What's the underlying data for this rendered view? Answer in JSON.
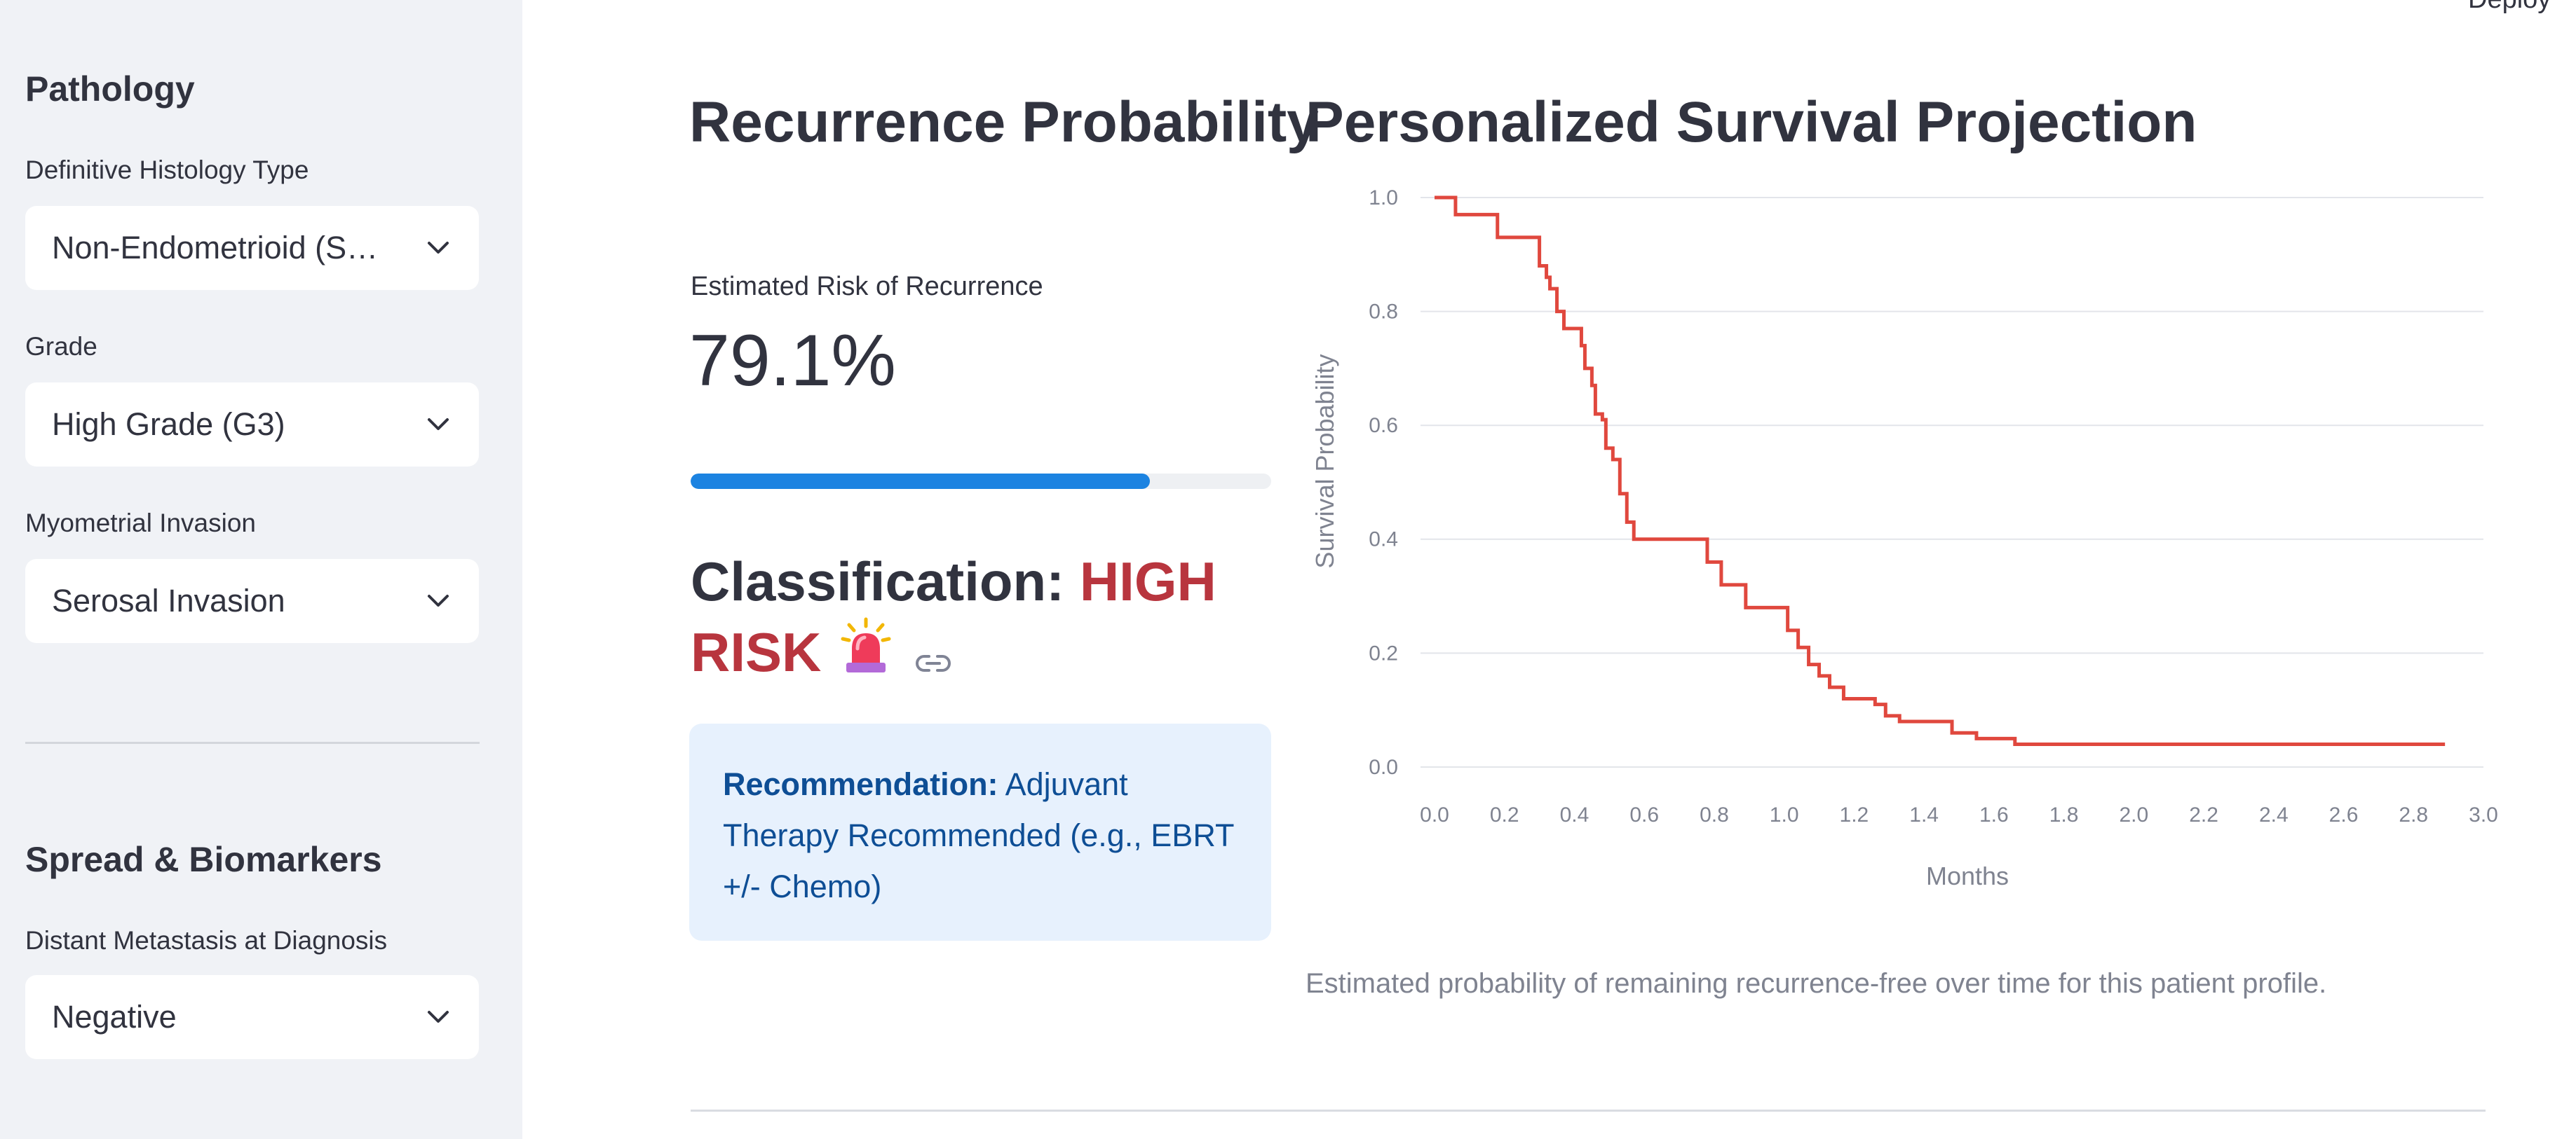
{
  "header": {
    "deploy_label": "Deploy"
  },
  "sidebar": {
    "pathology": {
      "title": "Pathology",
      "histology": {
        "label": "Definitive Histology Type",
        "value": "Non-Endometrioid (S…"
      },
      "grade": {
        "label": "Grade",
        "value": "High Grade (G3)"
      },
      "myometrial": {
        "label": "Myometrial Invasion",
        "value": "Serosal Invasion"
      }
    },
    "spread": {
      "title": "Spread & Biomarkers",
      "distant": {
        "label": "Distant Metastasis at Diagnosis",
        "value": "Negative"
      }
    }
  },
  "recurrence": {
    "title": "Recurrence Probability",
    "metric_label": "Estimated Risk of Recurrence",
    "metric_value": "79.1%",
    "progress_percent": 79.1,
    "classification_prefix": "Classification: ",
    "classification_value": "HIGH RISK",
    "recommendation_label": "Recommendation:",
    "recommendation_text": " Adjuvant Therapy Recommended (e.g., EBRT +/- Chemo)"
  },
  "survival": {
    "title": "Personalized Survival Projection",
    "caption": "Estimated probability of remaining recurrence-free over time for this patient profile."
  },
  "colors": {
    "accent": "#1c83e1",
    "risk": "#b8353e",
    "line": "#e0483e",
    "alert_bg": "#e7f1fd",
    "alert_text": "#0e4e95"
  },
  "chart_data": {
    "type": "line",
    "title": "",
    "xlabel": "Months",
    "ylabel": "Survival Probability",
    "xlim": [
      0,
      3.0
    ],
    "ylim": [
      0,
      1.0
    ],
    "x_ticks": [
      "0.0",
      "0.2",
      "0.4",
      "0.6",
      "0.8",
      "1.0",
      "1.2",
      "1.4",
      "1.6",
      "1.8",
      "2.0",
      "2.2",
      "2.4",
      "2.6",
      "2.8",
      "3.0"
    ],
    "y_ticks": [
      "0.0",
      "0.2",
      "0.4",
      "0.6",
      "0.8",
      "1.0"
    ],
    "grid": true,
    "series": [
      {
        "name": "Survival",
        "step": true,
        "x": [
          0.0,
          0.03,
          0.06,
          0.11,
          0.18,
          0.24,
          0.26,
          0.3,
          0.32,
          0.33,
          0.35,
          0.37,
          0.4,
          0.42,
          0.43,
          0.45,
          0.46,
          0.48,
          0.49,
          0.51,
          0.53,
          0.55,
          0.57,
          0.6,
          0.64,
          0.68,
          0.72,
          0.76,
          0.78,
          0.82,
          0.85,
          0.89,
          0.93,
          0.96,
          1.0,
          1.01,
          1.04,
          1.07,
          1.1,
          1.13,
          1.17,
          1.23,
          1.26,
          1.29,
          1.33,
          1.36,
          1.45,
          1.48,
          1.52,
          1.55,
          1.6,
          1.66,
          1.72,
          2.0,
          2.4,
          2.8,
          2.89
        ],
        "values": [
          1.0,
          1.0,
          0.97,
          0.97,
          0.93,
          0.93,
          0.93,
          0.88,
          0.86,
          0.84,
          0.8,
          0.77,
          0.77,
          0.74,
          0.7,
          0.67,
          0.62,
          0.61,
          0.56,
          0.54,
          0.48,
          0.43,
          0.4,
          0.4,
          0.4,
          0.4,
          0.4,
          0.4,
          0.36,
          0.32,
          0.32,
          0.28,
          0.28,
          0.28,
          0.28,
          0.24,
          0.21,
          0.18,
          0.16,
          0.14,
          0.12,
          0.12,
          0.11,
          0.09,
          0.08,
          0.08,
          0.08,
          0.06,
          0.06,
          0.05,
          0.05,
          0.04,
          0.04,
          0.04,
          0.04,
          0.04,
          0.04
        ]
      }
    ]
  }
}
